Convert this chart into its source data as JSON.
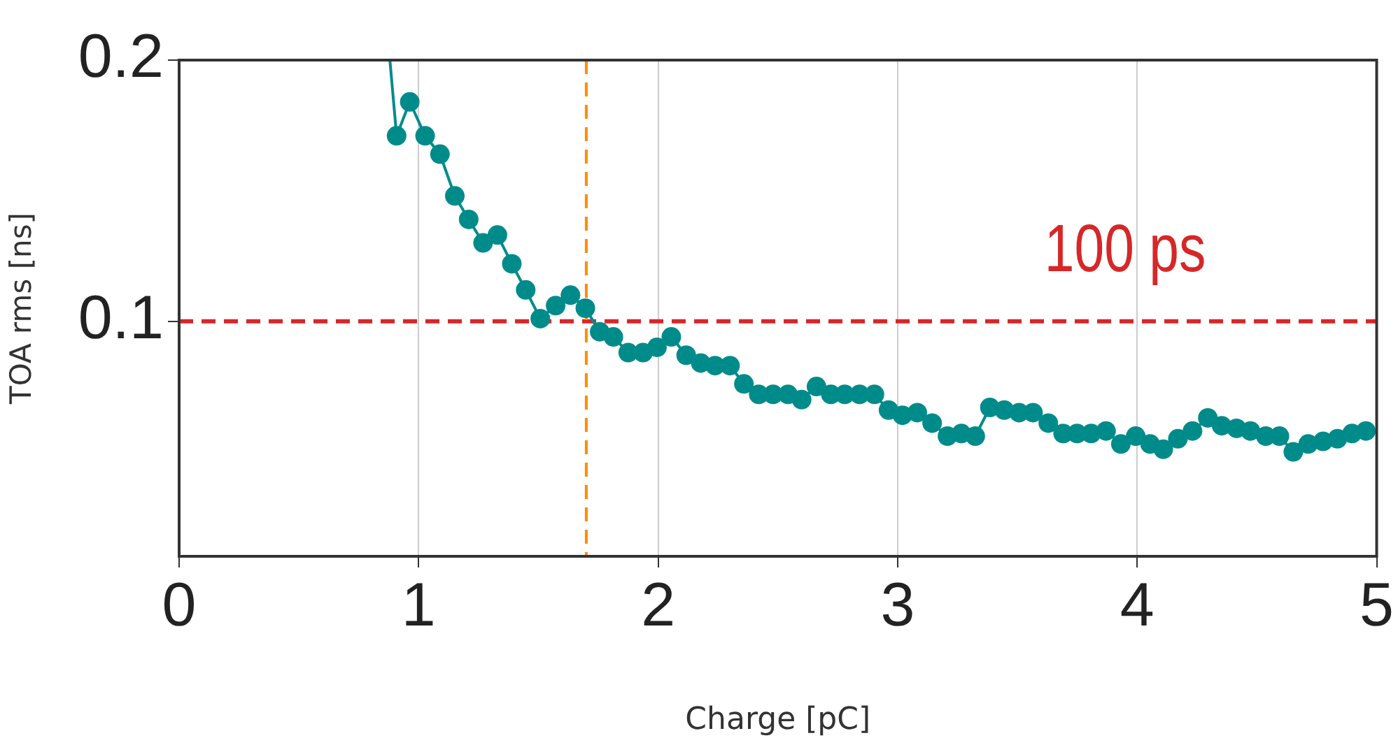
{
  "chart_data": {
    "type": "line",
    "xlabel": "Charge [pC]",
    "ylabel": "TOA rms [ns]",
    "xlim": [
      0,
      5
    ],
    "xticks": [
      0,
      1,
      2,
      3,
      4,
      5
    ],
    "ylim": [
      0.01,
      0.2
    ],
    "yticks": [
      0.1,
      0.2
    ],
    "grid": "x",
    "legend": false,
    "marker": "circle",
    "line_style": "solid",
    "series": [
      {
        "color": "#008b8b",
        "x": [
          0.88,
          0.908,
          0.963,
          1.027,
          1.089,
          1.151,
          1.209,
          1.269,
          1.329,
          1.389,
          1.447,
          1.508,
          1.572,
          1.634,
          1.696,
          1.756,
          1.813,
          1.875,
          1.937,
          1.995,
          2.055,
          2.117,
          2.178,
          2.238,
          2.3,
          2.358,
          2.42,
          2.48,
          2.542,
          2.599,
          2.661,
          2.721,
          2.779,
          2.841,
          2.903,
          2.962,
          3.02,
          3.082,
          3.144,
          3.208,
          3.266,
          3.324,
          3.385,
          3.445,
          3.507,
          3.565,
          3.629,
          3.691,
          3.749,
          3.808,
          3.87,
          3.932,
          3.994,
          4.054,
          4.109,
          4.17,
          4.231,
          4.295,
          4.353,
          4.415,
          4.473,
          4.537,
          4.594,
          4.652,
          4.714,
          4.776,
          4.836,
          4.897,
          4.955
        ],
        "values": [
          0.2,
          0.171,
          0.184,
          0.171,
          0.164,
          0.148,
          0.139,
          0.13,
          0.133,
          0.122,
          0.112,
          0.101,
          0.106,
          0.11,
          0.105,
          0.096,
          0.094,
          0.088,
          0.088,
          0.09,
          0.094,
          0.087,
          0.084,
          0.083,
          0.083,
          0.076,
          0.072,
          0.072,
          0.072,
          0.07,
          0.075,
          0.072,
          0.072,
          0.072,
          0.072,
          0.066,
          0.064,
          0.065,
          0.061,
          0.056,
          0.057,
          0.056,
          0.067,
          0.066,
          0.065,
          0.065,
          0.061,
          0.057,
          0.057,
          0.057,
          0.058,
          0.053,
          0.056,
          0.053,
          0.051,
          0.055,
          0.058,
          0.063,
          0.06,
          0.059,
          0.058,
          0.056,
          0.056,
          0.05,
          0.053,
          0.054,
          0.055,
          0.057,
          0.058
        ]
      }
    ],
    "ref_lines": [
      {
        "axis": "y",
        "value": 0.1,
        "label": "100 ps",
        "color": "#d62728",
        "line_style": "dashed"
      },
      {
        "axis": "x",
        "value": 1.7,
        "label": null,
        "color": "#ff8c00",
        "line_style": "dashed"
      }
    ]
  }
}
